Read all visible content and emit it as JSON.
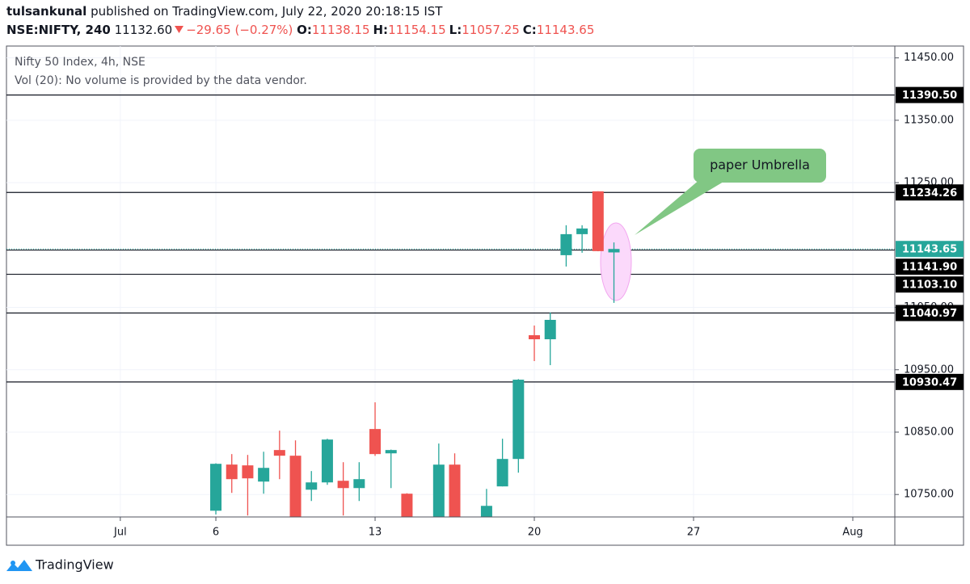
{
  "header": {
    "publisher": "tulsankunal",
    "published": "published on TradingView.com, July 22, 2020 20:18:15 IST",
    "symbol": "NSE:NIFTY, 240",
    "last": "11132.60",
    "change": "−29.65 (−0.27%)",
    "ohlc": [
      {
        "label": "O:",
        "value": "11138.15"
      },
      {
        "label": "H:",
        "value": "11154.15"
      },
      {
        "label": "L:",
        "value": "11057.25"
      },
      {
        "label": "C:",
        "value": "11143.65"
      }
    ]
  },
  "chart_data": {
    "type": "candlestick",
    "title": "Nifty 50 Index, 4h, NSE",
    "subtitle": "Vol (20): No volume is provided by the data vendor.",
    "x": [
      0,
      1,
      2,
      3,
      4,
      5,
      6,
      7,
      8,
      9,
      10,
      11,
      12,
      14,
      15,
      17,
      18,
      19,
      20,
      21,
      22,
      23,
      24,
      25
    ],
    "open": [
      10724,
      10798,
      10796.7,
      10770.7,
      10821.3,
      10812.2,
      10757.7,
      10769.4,
      10772,
      10760.3,
      10855,
      10816,
      10751.3,
      10705,
      10797.9,
      10705,
      10763,
      10807,
      11005.4,
      10998.9,
      11133.7,
      11167.4,
      11236.1,
      11138.15
    ],
    "high": [
      10800,
      10814.8,
      10813.5,
      10818.6,
      10852.4,
      10836.8,
      10787.6,
      10839.4,
      10801.8,
      10801.8,
      10897.8,
      10822,
      10752,
      10831.7,
      10816,
      10759,
      10839.4,
      10935,
      11020.9,
      11041.7,
      11181.7,
      11181.7,
      11236.1,
      11154.15
    ],
    "low": [
      10718,
      10752.6,
      10716.3,
      10751.3,
      10774.6,
      10690,
      10739.6,
      10765.5,
      10716.3,
      10739.6,
      10812,
      10760.3,
      10700,
      10700,
      10700,
      10700,
      10763,
      10785,
      10963.9,
      10957.4,
      11115.5,
      11137.6,
      11140,
      11057.25
    ],
    "close": [
      10799.2,
      10774.6,
      10775.9,
      10792.7,
      10812.2,
      10700,
      10769.4,
      10838.1,
      10760.3,
      10774.6,
      10814.8,
      10821.3,
      10705,
      10797.9,
      10705,
      10731.8,
      10807,
      10934.1,
      10998.9,
      11030,
      11167.4,
      11176.5,
      11140.2,
      11143.65
    ],
    "up_color": "#26a69a",
    "down_color": "#ef5350",
    "xlim": [
      -13.15,
      42.64
    ],
    "xticks": [
      {
        "value": -6,
        "label": "Jul"
      },
      {
        "value": 0,
        "label": "6"
      },
      {
        "value": 10,
        "label": "13"
      },
      {
        "value": 20,
        "label": "20"
      },
      {
        "value": 30,
        "label": "27"
      },
      {
        "value": 40,
        "label": "Aug"
      }
    ],
    "ylim": [
      10714,
      11469
    ],
    "yticks": [
      {
        "value": 10750,
        "label": "10750.00"
      },
      {
        "value": 10850,
        "label": "10850.00"
      },
      {
        "value": 10950,
        "label": "10950.00"
      },
      {
        "value": 11050,
        "label": "11050.00"
      },
      {
        "value": 11250,
        "label": "11250.00"
      },
      {
        "value": 11350,
        "label": "11350.00"
      },
      {
        "value": 11450,
        "label": "11450.00"
      }
    ],
    "levels": [
      {
        "value": 11390.5,
        "label": "11390.50"
      },
      {
        "value": 11234.26,
        "label": "11234.26"
      },
      {
        "value": 11141.9,
        "label": "11141.90"
      },
      {
        "value": 11103.1,
        "label": "11103.10"
      },
      {
        "value": 11040.97,
        "label": "11040.97"
      },
      {
        "value": 10930.47,
        "label": "10930.47"
      }
    ],
    "last_price": {
      "value": 11143.65,
      "label": "11143.65"
    },
    "annotation": "paper Umbrella",
    "grid": true
  },
  "footer": {
    "brand": "TradingView"
  }
}
